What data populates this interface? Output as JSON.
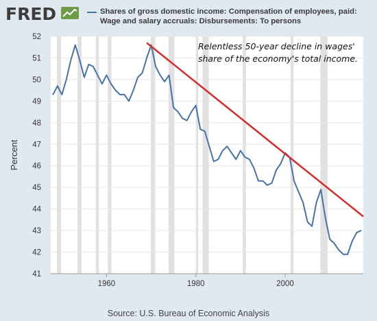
{
  "header": {
    "logo_text": "FRED",
    "logo_icon": "fred-trend-icon",
    "legend_text": "Shares of gross domestic income: Compensation of employees, paid: Wage and salary accruals: Disbursements: To persons"
  },
  "source": "Source: U.S. Bureau of Economic Analysis",
  "colors": {
    "series": "#4572a7",
    "recession": "#e1e1e1",
    "trendline": "#d62a2a",
    "background": "#e1e9f0",
    "plot": "#ffffff"
  },
  "chart_data": {
    "type": "line",
    "title": "",
    "xlabel": "",
    "ylabel": "Percent",
    "xlim": [
      1947.5,
      2017.5
    ],
    "ylim": [
      41,
      52
    ],
    "xticks": [
      1960,
      1980,
      2000
    ],
    "yticks": [
      41,
      42,
      43,
      44,
      45,
      46,
      47,
      48,
      49,
      50,
      51,
      52
    ],
    "grid": "horizontal",
    "series": [
      {
        "name": "Shares of gross domestic income: Compensation of employees, paid: Wage and salary accruals: Disbursements: To persons",
        "x": [
          1948,
          1949,
          1950,
          1951,
          1952,
          1953,
          1954,
          1955,
          1956,
          1957,
          1958,
          1959,
          1960,
          1961,
          1962,
          1963,
          1964,
          1965,
          1966,
          1967,
          1968,
          1969,
          1970,
          1971,
          1972,
          1973,
          1974,
          1975,
          1976,
          1977,
          1978,
          1979,
          1980,
          1981,
          1982,
          1983,
          1984,
          1985,
          1986,
          1987,
          1988,
          1989,
          1990,
          1991,
          1992,
          1993,
          1994,
          1995,
          1996,
          1997,
          1998,
          1999,
          2000,
          2001,
          2002,
          2003,
          2004,
          2005,
          2006,
          2007,
          2008,
          2009,
          2010,
          2011,
          2012,
          2013,
          2014,
          2015,
          2016,
          2017
        ],
        "y": [
          49.3,
          49.7,
          49.3,
          50.0,
          50.9,
          51.6,
          50.9,
          50.1,
          50.7,
          50.6,
          50.2,
          49.8,
          50.2,
          49.8,
          49.5,
          49.3,
          49.3,
          49.0,
          49.5,
          50.1,
          50.3,
          51.0,
          51.6,
          50.6,
          50.2,
          49.9,
          50.2,
          48.7,
          48.5,
          48.2,
          48.1,
          48.5,
          48.8,
          47.7,
          47.6,
          46.9,
          46.2,
          46.3,
          46.7,
          46.9,
          46.6,
          46.3,
          46.7,
          46.4,
          46.3,
          45.9,
          45.3,
          45.3,
          45.1,
          45.2,
          45.8,
          46.1,
          46.6,
          46.4,
          45.3,
          44.8,
          44.3,
          43.4,
          43.2,
          44.3,
          44.9,
          43.6,
          42.6,
          42.4,
          42.1,
          41.9,
          41.9,
          42.5,
          42.9,
          43.0
        ]
      }
    ],
    "recessions": [
      [
        1948.9,
        1949.8
      ],
      [
        1953.5,
        1954.4
      ],
      [
        1957.6,
        1958.3
      ],
      [
        1960.3,
        1961.1
      ],
      [
        1969.9,
        1970.9
      ],
      [
        1973.9,
        1975.2
      ],
      [
        1980.0,
        1980.5
      ],
      [
        1981.5,
        1982.9
      ],
      [
        1990.5,
        1991.2
      ],
      [
        2001.2,
        2001.9
      ],
      [
        2007.9,
        2009.5
      ]
    ],
    "trendline": {
      "x": [
        1969.0,
        2017.5
      ],
      "y": [
        51.7,
        43.65
      ]
    },
    "annotation": {
      "text": "Relentless 50-year decline in wages' share of the economy's total income.",
      "line1": "Relentless 50-year decline in wages'",
      "line2": "share of the economy's total income."
    }
  }
}
